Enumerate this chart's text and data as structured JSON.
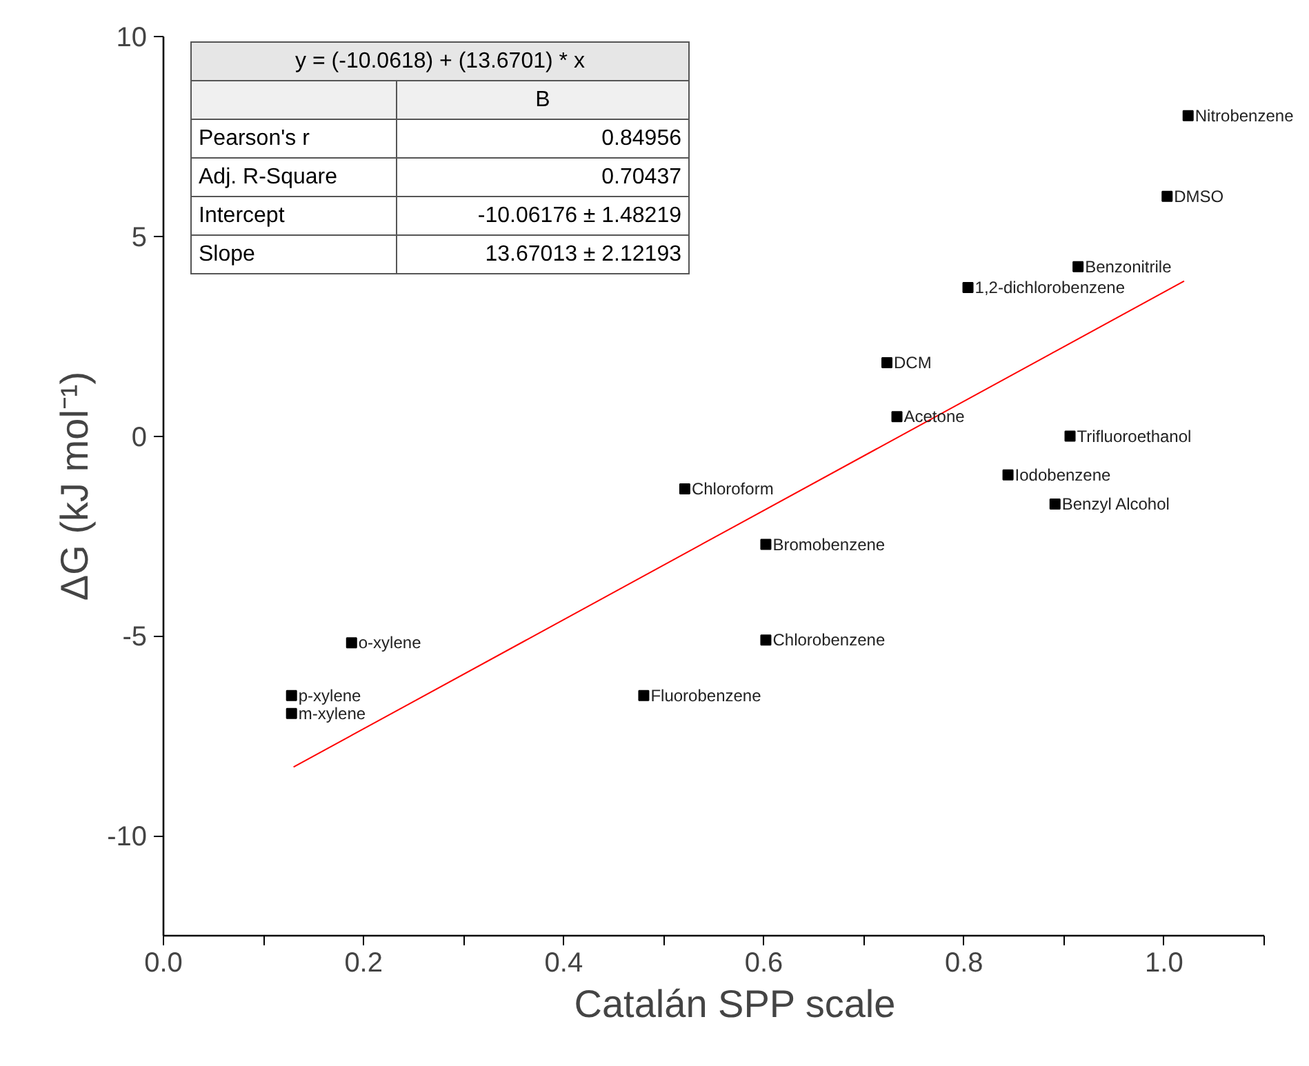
{
  "chart_data": {
    "type": "scatter",
    "xlabel": "Catalán SPP scale",
    "ylabel": "ΔG (kJ mol⁻¹)",
    "xlim": [
      0,
      1.1
    ],
    "ylim": [
      -12.5,
      10
    ],
    "xticks": [
      {
        "value": 0,
        "label": "0.0"
      },
      {
        "value": 0.1,
        "label": null
      },
      {
        "value": 0.2,
        "label": "0.2"
      },
      {
        "value": 0.3,
        "label": null
      },
      {
        "value": 0.4,
        "label": "0.4"
      },
      {
        "value": 0.5,
        "label": null
      },
      {
        "value": 0.6,
        "label": "0.6"
      },
      {
        "value": 0.7,
        "label": null
      },
      {
        "value": 0.8,
        "label": "0.8"
      },
      {
        "value": 0.9,
        "label": null
      },
      {
        "value": 1.0,
        "label": "1.0"
      },
      {
        "value": 1.1,
        "label": null
      }
    ],
    "yticks": [
      -10,
      -5,
      0,
      5,
      10
    ],
    "grid": false,
    "series": [
      {
        "color": "#000000",
        "marker": "square",
        "x": [
          1.024,
          1.003,
          0.914,
          0.804,
          0.723,
          0.733,
          0.906,
          0.844,
          0.891,
          0.521,
          0.602,
          0.602,
          0.48,
          0.188,
          0.128,
          0.128
        ],
        "values": [
          8.02,
          6.0,
          4.24,
          3.72,
          1.84,
          0.49,
          0.0,
          -0.97,
          -1.7,
          -1.32,
          -2.71,
          -5.1,
          -6.49,
          -5.17,
          -6.49,
          -6.94
        ]
      },
      {
        "type": "line",
        "color": "#ff0000",
        "line_style": "solid",
        "x": [
          0.13,
          1.02
        ],
        "values": [
          -8.28,
          3.88
        ]
      }
    ],
    "annotations": [
      "y = (-10.0618) + (13.6701) * x",
      "B",
      "Pearson's r",
      "0.84956",
      "Adj. R-Square",
      "0.70437",
      "Intercept",
      "-10.06176 ± 1.48219",
      "Slope",
      "13.67013 ± 2.12193",
      {
        "text": "Nitrobenzene",
        "x": 1.024,
        "y": 8.02
      },
      {
        "text": "DMSO",
        "x": 1.003,
        "y": 6.0
      },
      {
        "text": "Benzonitrile",
        "x": 0.914,
        "y": 4.24
      },
      {
        "text": "1,2-dichlorobenzene",
        "x": 0.804,
        "y": 3.72
      },
      {
        "text": "DCM",
        "x": 0.723,
        "y": 1.84
      },
      {
        "text": "Acetone",
        "x": 0.733,
        "y": 0.49
      },
      {
        "text": "Trifluoroethanol",
        "x": 0.906,
        "y": 0.0
      },
      {
        "text": "Iodobenzene",
        "x": 0.844,
        "y": -0.97
      },
      {
        "text": "Benzyl Alcohol",
        "x": 0.891,
        "y": -1.7
      },
      {
        "text": "Chloroform",
        "x": 0.521,
        "y": -1.32
      },
      {
        "text": "Bromobenzene",
        "x": 0.602,
        "y": -2.71
      },
      {
        "text": "Chlorobenzene",
        "x": 0.602,
        "y": -5.1
      },
      {
        "text": "Fluorobenzene",
        "x": 0.48,
        "y": -6.49
      },
      {
        "text": "o-xylene",
        "x": 0.188,
        "y": -5.17
      },
      {
        "text": "p-xylene",
        "x": 0.128,
        "y": -6.49
      },
      {
        "text": "m-xylene",
        "x": 0.128,
        "y": -6.94
      }
    ]
  }
}
